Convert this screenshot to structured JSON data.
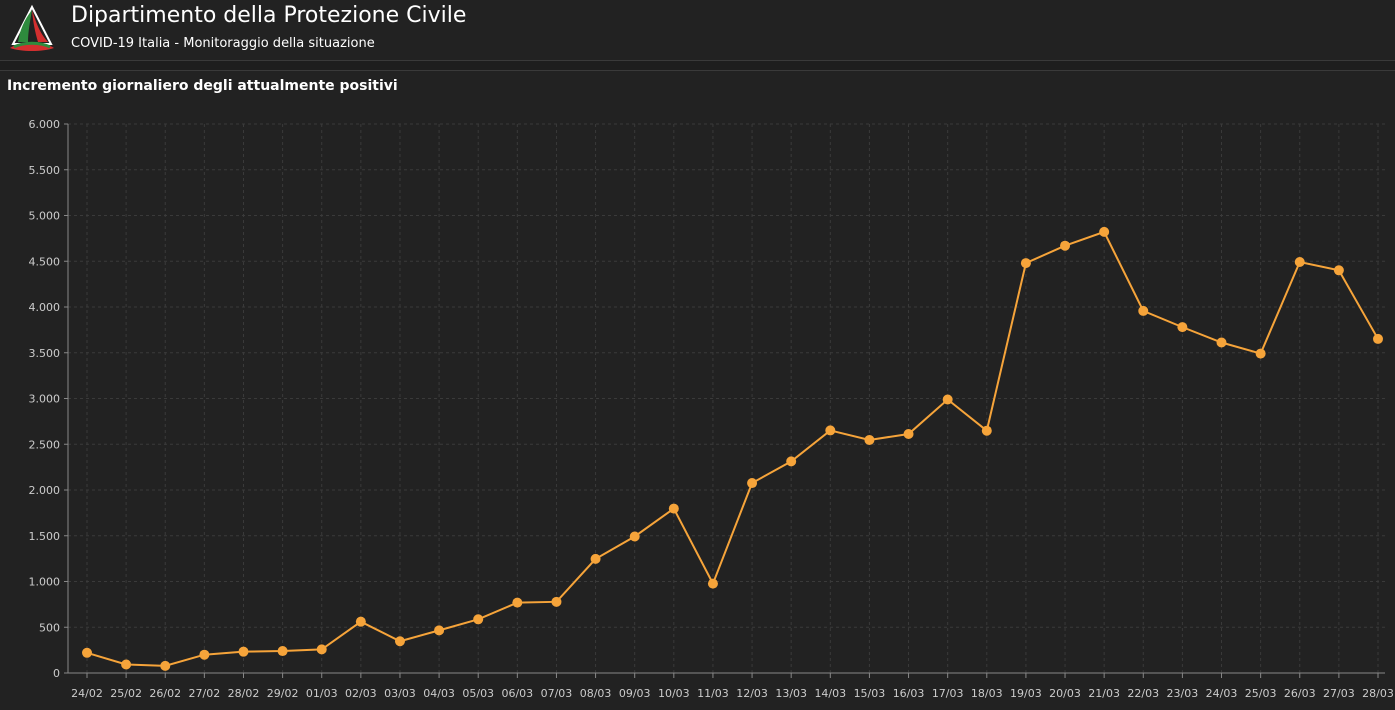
{
  "header": {
    "title": "Dipartimento della Protezione Civile",
    "subtitle": "COVID-19 Italia - Monitoraggio della situazione",
    "logo_icon": "protezione-civile-logo",
    "logo_colors": [
      "#2e8b3d",
      "#ffffff",
      "#d32f2f"
    ]
  },
  "panel": {
    "title": "Incremento giornaliero degli attualmente positivi"
  },
  "colors": {
    "background": "#1e1e1e",
    "panel": "#222222",
    "series": "#f6a43a",
    "axis_text": "#cccccc",
    "grid": "#3a3a3a"
  },
  "chart_data": {
    "type": "line",
    "title": "Incremento giornaliero degli attualmente positivi",
    "xlabel": "",
    "ylabel": "",
    "ylim": [
      0,
      6000
    ],
    "yticks": [
      0,
      500,
      1000,
      1500,
      2000,
      2500,
      3000,
      3500,
      4000,
      4500,
      5000,
      5500,
      6000
    ],
    "ytick_labels": [
      "0",
      "500",
      "1.000",
      "1.500",
      "2.000",
      "2.500",
      "3.000",
      "3.500",
      "4.000",
      "4.500",
      "5.000",
      "5.500",
      "6.000"
    ],
    "grid": true,
    "legend": "none",
    "categories": [
      "24/02",
      "25/02",
      "26/02",
      "27/02",
      "28/02",
      "29/02",
      "01/03",
      "02/03",
      "03/03",
      "04/03",
      "05/03",
      "06/03",
      "07/03",
      "08/03",
      "09/03",
      "10/03",
      "11/03",
      "12/03",
      "13/03",
      "14/03",
      "15/03",
      "16/03",
      "17/03",
      "18/03",
      "19/03",
      "20/03",
      "21/03",
      "22/03",
      "23/03",
      "24/03",
      "25/03",
      "26/03",
      "27/03",
      "28/03"
    ],
    "series": [
      {
        "values": [
          221,
          93,
          78,
          200,
          233,
          240,
          258,
          561,
          347,
          466,
          587,
          769,
          778,
          1247,
          1492,
          1797,
          977,
          2076,
          2313,
          2651,
          2547,
          2612,
          2989,
          2648,
          4480,
          4670,
          4821,
          3957,
          3780,
          3612,
          3491,
          4492,
          4401,
          3651
        ],
        "color": "#f6a43a"
      }
    ]
  }
}
